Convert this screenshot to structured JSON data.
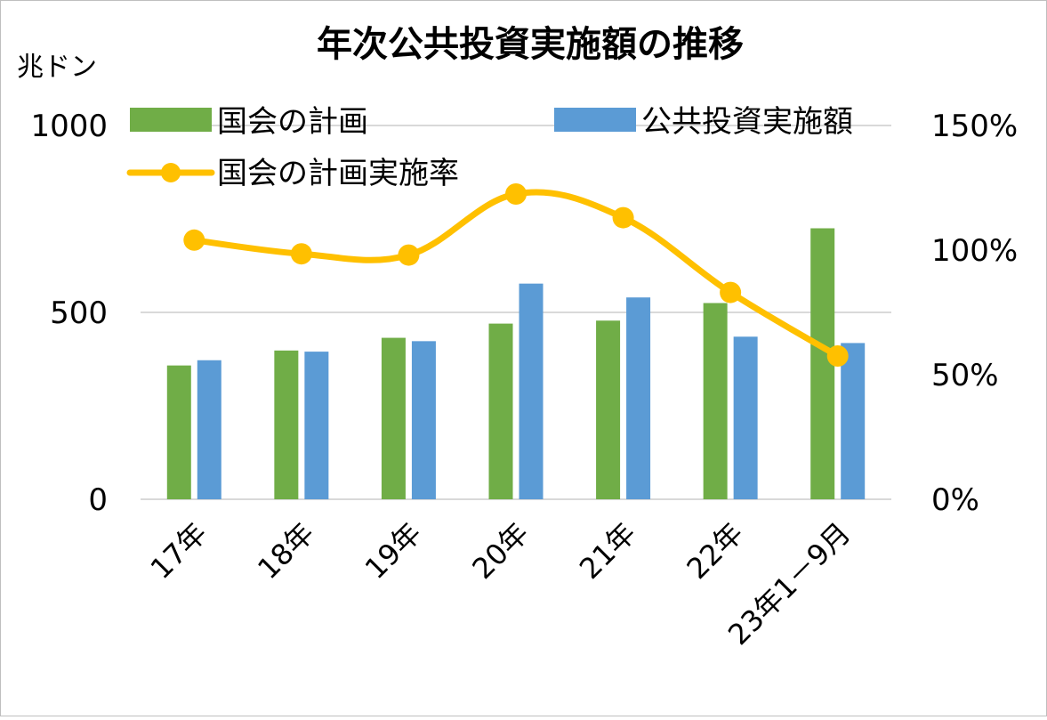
{
  "chart_data": {
    "type": "bar",
    "title": "年次公共投資実施額の推移",
    "left_axis_unit": "兆ドン",
    "categories": [
      "17年",
      "18年",
      "19年",
      "20年",
      "21年",
      "22年",
      "23年1－9月"
    ],
    "series": [
      {
        "name": "国会の計画",
        "type": "bar",
        "axis": "left",
        "color": "#70ad47",
        "values": [
          358,
          398,
          432,
          470,
          478,
          525,
          725
        ]
      },
      {
        "name": "公共投資実施額",
        "type": "bar",
        "axis": "left",
        "color": "#5b9bd5",
        "values": [
          372,
          395,
          423,
          577,
          540,
          435,
          418
        ]
      },
      {
        "name": "国会の計画実施率",
        "type": "line",
        "axis": "right",
        "color": "#ffc000",
        "values": [
          1.04,
          0.985,
          0.98,
          1.225,
          1.13,
          0.83,
          0.575
        ]
      }
    ],
    "left_axis": {
      "ylim": [
        0,
        1000
      ],
      "ticks": [
        "0",
        "500",
        "1000"
      ],
      "tick_values": [
        0,
        500,
        1000
      ]
    },
    "right_axis": {
      "ylim": [
        0,
        1.5
      ],
      "ticks": [
        "0%",
        "50%",
        "100%",
        "150%"
      ],
      "tick_values": [
        0,
        0.5,
        1.0,
        1.5
      ]
    },
    "grid": true,
    "legend_position": "top"
  }
}
